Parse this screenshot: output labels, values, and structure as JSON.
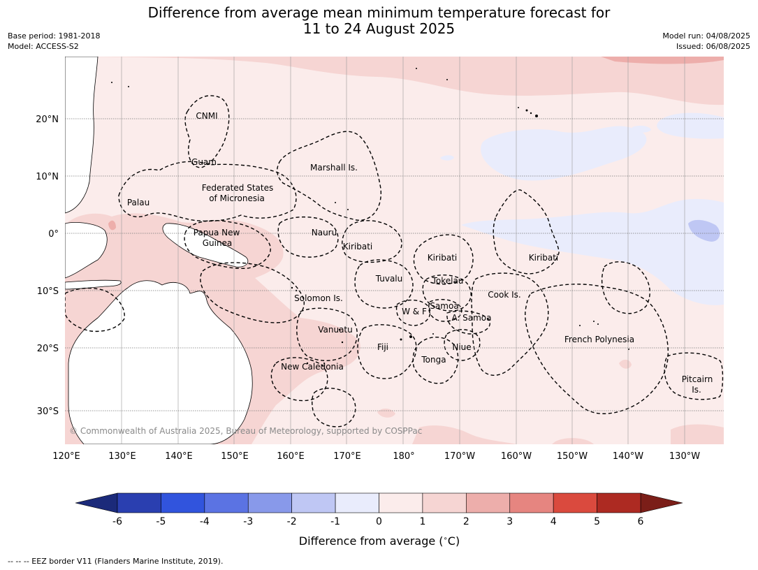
{
  "header": {
    "title_line1": "Difference from average mean minimum temperature forecast for",
    "title_line2": "11 to 24 August 2025",
    "base_period": "Base period: 1981-2018",
    "model": "Model: ACCESS-S2",
    "model_run": "Model run: 04/08/2025",
    "issued": "Issued: 06/08/2025"
  },
  "map": {
    "lat_labels": [
      "20°N",
      "10°N",
      "0°",
      "10°S",
      "20°S",
      "30°S"
    ],
    "lon_labels": [
      "120°E",
      "130°E",
      "140°E",
      "150°E",
      "160°E",
      "170°E",
      "180°",
      "170°W",
      "160°W",
      "150°W",
      "140°W",
      "130°W"
    ],
    "region_labels": [
      "CNMI",
      "Guam",
      "Palau",
      "Marshall Is.",
      "Federated States",
      "of Micronesia",
      "Papua New",
      "Guinea",
      "Nauru",
      "Kiribati",
      "Kiribati",
      "Kiribati",
      "Tuvalu",
      "Tokelau",
      "Solomon Is.",
      "Cook Is.",
      "Samoa",
      "W & F",
      "A. Samoa",
      "Vanuatu",
      "Fiji",
      "Niue",
      "Tonga",
      "French Polynesia",
      "New Caledonia",
      "Pitcairn",
      "Is."
    ],
    "copyright": "© Commonwealth of Australia 2025, Bureau of Meteorology, supported by COSPPac",
    "land_color": "#ffffff",
    "coast_color": "#000000"
  },
  "colorbar": {
    "title": "Difference from average (",
    "unit": "C)",
    "tick_labels": [
      "-6",
      "-5",
      "-4",
      "-3",
      "-2",
      "-1",
      "0",
      "1",
      "2",
      "3",
      "4",
      "5",
      "6"
    ],
    "colors": [
      "#2a3fb0",
      "#3154dd",
      "#5b73e3",
      "#8899ea",
      "#bfc7f4",
      "#e9ecfc",
      "#fbeceb",
      "#f6d5d3",
      "#edaeab",
      "#e68580",
      "#da4a3e",
      "#ad2a22"
    ],
    "under_color": "#1b2a7a",
    "over_color": "#7b1e18"
  },
  "footnote": "--  --  -- EEZ border V11 (Flanders Marine Institute, 2019)."
}
